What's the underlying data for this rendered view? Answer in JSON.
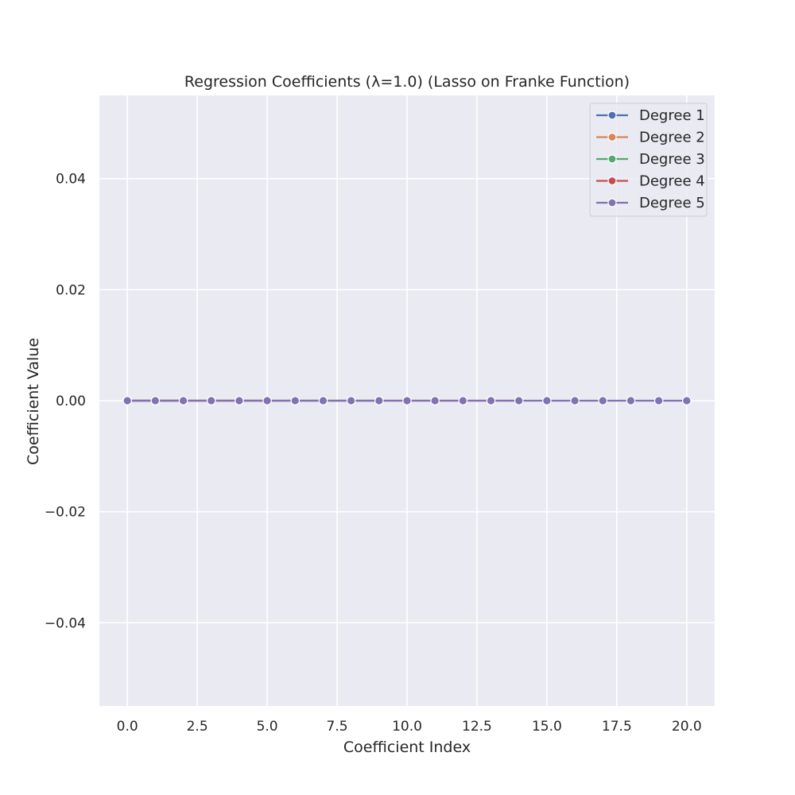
{
  "chart_data": {
    "type": "line",
    "title": "Regression Coefficients (λ=1.0) (Lasso on Franke Function)",
    "xlabel": "Coefficient Index",
    "ylabel": "Coefficient Value",
    "xlim": [
      -1.0,
      21.0
    ],
    "ylim": [
      -0.055,
      0.055
    ],
    "xticks": [
      0.0,
      2.5,
      5.0,
      7.5,
      10.0,
      12.5,
      15.0,
      17.5,
      20.0
    ],
    "xtick_labels": [
      "0.0",
      "2.5",
      "5.0",
      "7.5",
      "10.0",
      "12.5",
      "15.0",
      "17.5",
      "20.0"
    ],
    "yticks": [
      -0.04,
      -0.02,
      0.0,
      0.02,
      0.04
    ],
    "ytick_labels": [
      "−0.04",
      "−0.02",
      "0.00",
      "0.02",
      "0.04"
    ],
    "grid": true,
    "legend_position": "top-right",
    "series": [
      {
        "name": "Degree 1",
        "color": "#4c72b0",
        "x": [
          0,
          1,
          2
        ],
        "y": [
          0,
          0,
          0
        ]
      },
      {
        "name": "Degree 2",
        "color": "#dd8452",
        "x": [
          0,
          1,
          2,
          3,
          4,
          5
        ],
        "y": [
          0,
          0,
          0,
          0,
          0,
          0
        ]
      },
      {
        "name": "Degree 3",
        "color": "#55a868",
        "x": [
          0,
          1,
          2,
          3,
          4,
          5,
          6,
          7,
          8,
          9
        ],
        "y": [
          0,
          0,
          0,
          0,
          0,
          0,
          0,
          0,
          0,
          0
        ]
      },
      {
        "name": "Degree 4",
        "color": "#c44e52",
        "x": [
          0,
          1,
          2,
          3,
          4,
          5,
          6,
          7,
          8,
          9,
          10,
          11,
          12,
          13,
          14
        ],
        "y": [
          0,
          0,
          0,
          0,
          0,
          0,
          0,
          0,
          0,
          0,
          0,
          0,
          0,
          0,
          0
        ]
      },
      {
        "name": "Degree 5",
        "color": "#8172b3",
        "x": [
          0,
          1,
          2,
          3,
          4,
          5,
          6,
          7,
          8,
          9,
          10,
          11,
          12,
          13,
          14,
          15,
          16,
          17,
          18,
          19,
          20
        ],
        "y": [
          0,
          0,
          0,
          0,
          0,
          0,
          0,
          0,
          0,
          0,
          0,
          0,
          0,
          0,
          0,
          0,
          0,
          0,
          0,
          0,
          0
        ]
      }
    ]
  }
}
